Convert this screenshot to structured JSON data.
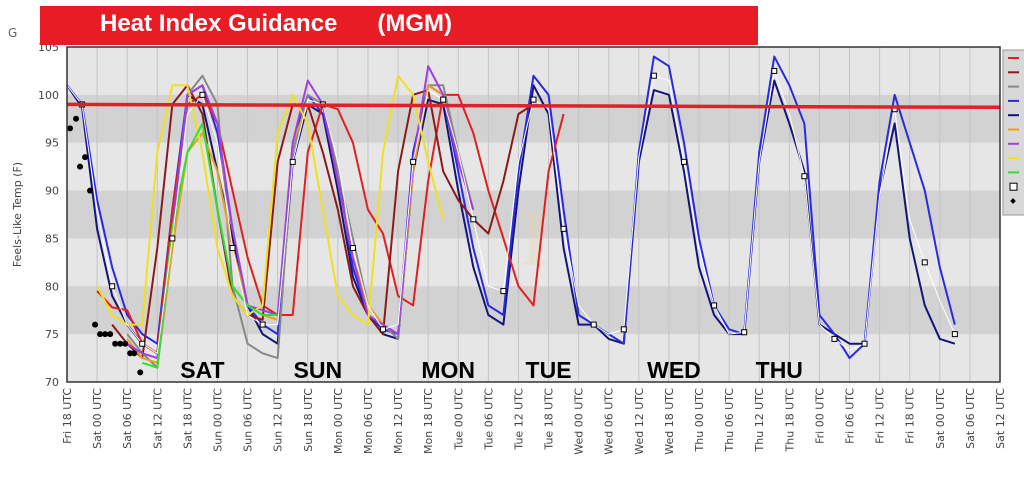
{
  "header": {
    "title": "Heat Index Guidance      (MGM)",
    "clipped_text": "G"
  },
  "chart_data": {
    "type": "line",
    "title": "Heat Index Guidance      (MGM)",
    "ylabel": "Feels-Like Temp (F)",
    "xlabel": "",
    "ylim": [
      70,
      105
    ],
    "yticks": [
      70,
      75,
      80,
      85,
      90,
      95,
      100,
      105
    ],
    "x_unit": "hours after Fri 18 UTC",
    "xlim": [
      0,
      186
    ],
    "xtick_labels": [
      "Fri 18 UTC",
      "Sat 00 UTC",
      "Sat 06 UTC",
      "Sat 12 UTC",
      "Sat 18 UTC",
      "Sun 00 UTC",
      "Sun 06 UTC",
      "Sun 12 UTC",
      "Sun 18 UTC",
      "Mon 00 UTC",
      "Mon 06 UTC",
      "Mon 12 UTC",
      "Mon 18 UTC",
      "Tue 00 UTC",
      "Tue 06 UTC",
      "Tue 12 UTC",
      "Tue 18 UTC",
      "Wed 00 UTC",
      "Wed 06 UTC",
      "Wed 12 UTC",
      "Wed 18 UTC",
      "Thu 00 UTC",
      "Thu 06 UTC",
      "Thu 12 UTC",
      "Thu 18 UTC",
      "Fri 00 UTC",
      "Fri 06 UTC",
      "Fri 12 UTC",
      "Fri 18 UTC",
      "Sat 00 UTC",
      "Sat 06 UTC",
      "Sat 12 UTC"
    ],
    "day_labels": [
      {
        "text": "SAT",
        "hour": 27
      },
      {
        "text": "SUN",
        "hour": 50
      },
      {
        "text": "MON",
        "hour": 76
      },
      {
        "text": "TUE",
        "hour": 96
      },
      {
        "text": "WED",
        "hour": 121
      },
      {
        "text": "THU",
        "hour": 142
      }
    ],
    "threshold": {
      "color": "#e0202a",
      "values": [
        99,
        98.7
      ]
    },
    "step_hours": 3,
    "series": [
      {
        "name": "navy",
        "color": "#14147a",
        "start": 0,
        "values": [
          101,
          98.7,
          86,
          79,
          76,
          74,
          73,
          86,
          100,
          99,
          92,
          85,
          78,
          75,
          74,
          93,
          99,
          98,
          90,
          81,
          77,
          75,
          74.5,
          92,
          99.5,
          99,
          90,
          82,
          77,
          76,
          90,
          101,
          98,
          84,
          76,
          76,
          74.5,
          74,
          93,
          100.5,
          100,
          92,
          82,
          77,
          75,
          75,
          93,
          101.5,
          97,
          92,
          76,
          75,
          74,
          74,
          90,
          97,
          85,
          78,
          74.5,
          74
        ]
      },
      {
        "name": "blue",
        "color": "#2a2ae0",
        "start": 0,
        "values": [
          101,
          99,
          89,
          82,
          77,
          75,
          74,
          88,
          100,
          101,
          96,
          86,
          78,
          76,
          75,
          95,
          100,
          98,
          92,
          82,
          77,
          75.5,
          75,
          94,
          101,
          100,
          92,
          84,
          78,
          77,
          92,
          102,
          100,
          88,
          77,
          76,
          75,
          74,
          94,
          104,
          103,
          95,
          85,
          78,
          75.5,
          75,
          94,
          104,
          101,
          97,
          77,
          75,
          72.5,
          74,
          91,
          100,
          95,
          90,
          82,
          76
        ]
      },
      {
        "name": "red",
        "color": "#e02020",
        "start": 6,
        "values": [
          79.5,
          77.8,
          77.5,
          74,
          73,
          88,
          99,
          100,
          97,
          90,
          83,
          78,
          77,
          77,
          94,
          99,
          98.5,
          95,
          88,
          85.5,
          79,
          78,
          91,
          100,
          100,
          96,
          90,
          85,
          80,
          78,
          92,
          98
        ]
      },
      {
        "name": "dark-red",
        "color": "#8b1a1a",
        "start": 9,
        "values": [
          76,
          74,
          72.5,
          84,
          99,
          101,
          98,
          88,
          79,
          77,
          76.5,
          93,
          99,
          99,
          94,
          88,
          80,
          77,
          75,
          92,
          100,
          100.5,
          92,
          89,
          87,
          85.5,
          91,
          98,
          99
        ]
      },
      {
        "name": "gray",
        "color": "#888888",
        "start": 12,
        "values": [
          75,
          73,
          71.5,
          84,
          100,
          102,
          99,
          80,
          74,
          73,
          72.5,
          94,
          100,
          99,
          92,
          85,
          78,
          76,
          74.5,
          92,
          101,
          101,
          94,
          88
        ]
      },
      {
        "name": "orange",
        "color": "#e8a020",
        "start": 12,
        "values": [
          74.5,
          72.5,
          72,
          84,
          94,
          96,
          92,
          84,
          78,
          77,
          76.5,
          95,
          99,
          99,
          91,
          83,
          78,
          76,
          75,
          92,
          101,
          100,
          93,
          88
        ]
      },
      {
        "name": "purple",
        "color": "#a040e0",
        "start": 12,
        "values": [
          74,
          73,
          72.5,
          86,
          100,
          101,
          97,
          86,
          78,
          77.5,
          77,
          95,
          101.5,
          99,
          91,
          83,
          77,
          76,
          75,
          93,
          103,
          100,
          93,
          88
        ]
      },
      {
        "name": "yellow",
        "color": "#f0e020",
        "start": 6,
        "values": [
          80,
          77,
          76,
          76,
          94,
          101,
          101,
          94,
          84,
          79,
          77,
          78,
          96,
          100,
          97,
          88,
          79,
          77,
          76,
          94,
          102,
          100,
          93,
          87
        ]
      },
      {
        "name": "green",
        "color": "#30e030",
        "start": 15,
        "values": [
          72,
          71.5,
          86,
          94,
          97,
          88,
          80,
          78,
          77,
          77
        ]
      },
      {
        "name": "mean",
        "color": "#ffffff",
        "markers": "square",
        "start": 0,
        "values": [
          101,
          99,
          88,
          80,
          76,
          74,
          73,
          85,
          98,
          100,
          95,
          84,
          77,
          76,
          76,
          93,
          99.5,
          99,
          93,
          84,
          78,
          75.5,
          76,
          93,
          100.5,
          99.5,
          94,
          87,
          80,
          79.5,
          93,
          99.5,
          98.5,
          86,
          78,
          76,
          75,
          75.5,
          93.5,
          102,
          101.5,
          93,
          84,
          78,
          75,
          75.2,
          93,
          102.5,
          98,
          91.5,
          76,
          74.5,
          73.3,
          74,
          89.5,
          98.5,
          87,
          82.5,
          78.5,
          75
        ]
      }
    ],
    "observations": {
      "color": "#000000",
      "points": [
        [
          0.6,
          96.5
        ],
        [
          1.8,
          97.5
        ],
        [
          2.6,
          92.5
        ],
        [
          3.6,
          93.5
        ],
        [
          4.6,
          90
        ],
        [
          5.6,
          76
        ],
        [
          6.6,
          75
        ],
        [
          7.6,
          75
        ],
        [
          8.6,
          75
        ],
        [
          9.6,
          74
        ],
        [
          10.6,
          74
        ],
        [
          11.6,
          74
        ],
        [
          12.6,
          73
        ],
        [
          13.4,
          73
        ],
        [
          14.6,
          71
        ]
      ]
    },
    "legend": {
      "placement": "right",
      "items": [
        "#e02020",
        "#8b1a1a",
        "#888888",
        "#2a2ae0",
        "#14147a",
        "#e8a020",
        "#a040e0",
        "#f0e020",
        "#30e030",
        "square",
        "diamond"
      ]
    }
  }
}
